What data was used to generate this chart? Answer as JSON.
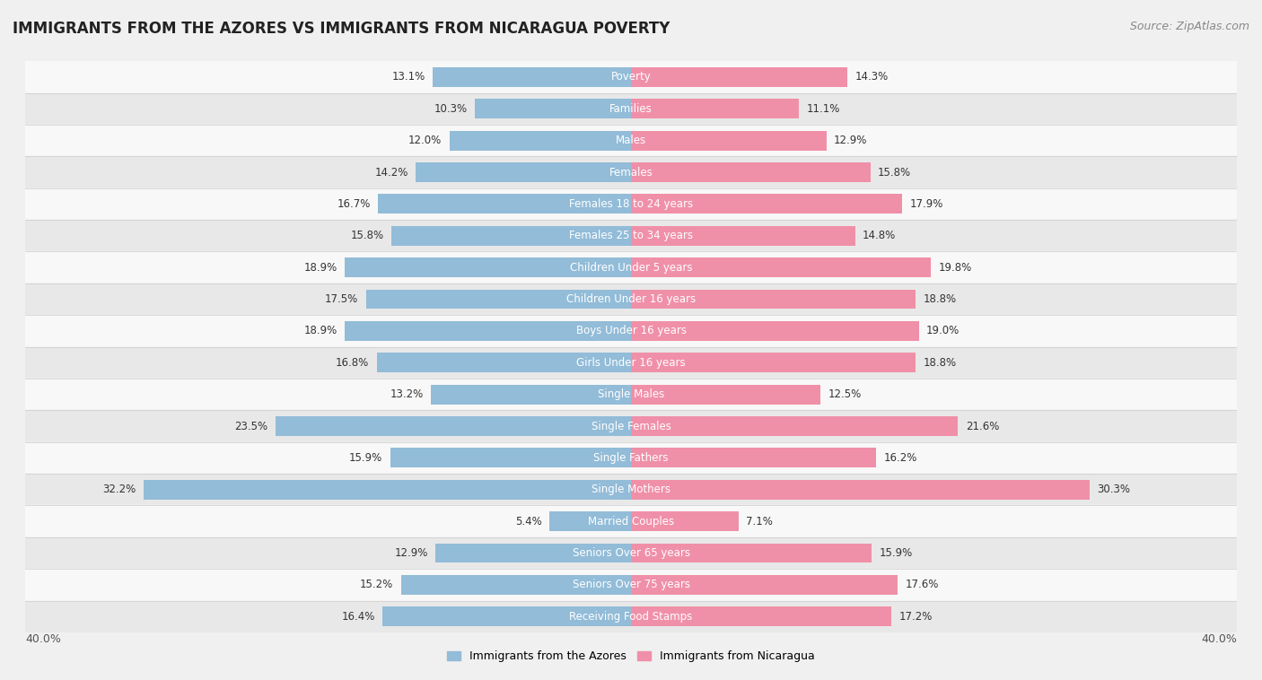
{
  "title": "IMMIGRANTS FROM THE AZORES VS IMMIGRANTS FROM NICARAGUA POVERTY",
  "source": "Source: ZipAtlas.com",
  "categories": [
    "Poverty",
    "Families",
    "Males",
    "Females",
    "Females 18 to 24 years",
    "Females 25 to 34 years",
    "Children Under 5 years",
    "Children Under 16 years",
    "Boys Under 16 years",
    "Girls Under 16 years",
    "Single Males",
    "Single Females",
    "Single Fathers",
    "Single Mothers",
    "Married Couples",
    "Seniors Over 65 years",
    "Seniors Over 75 years",
    "Receiving Food Stamps"
  ],
  "azores_values": [
    13.1,
    10.3,
    12.0,
    14.2,
    16.7,
    15.8,
    18.9,
    17.5,
    18.9,
    16.8,
    13.2,
    23.5,
    15.9,
    32.2,
    5.4,
    12.9,
    15.2,
    16.4
  ],
  "nicaragua_values": [
    14.3,
    11.1,
    12.9,
    15.8,
    17.9,
    14.8,
    19.8,
    18.8,
    19.0,
    18.8,
    12.5,
    21.6,
    16.2,
    30.3,
    7.1,
    15.9,
    17.6,
    17.2
  ],
  "azores_color": "#92bcd8",
  "nicaragua_color": "#f090a8",
  "azores_label": "Immigrants from the Azores",
  "nicaragua_label": "Immigrants from Nicaragua",
  "xlim": 40.0,
  "background_color": "#f0f0f0",
  "row_odd_color": "#e8e8e8",
  "row_even_color": "#f8f8f8",
  "title_fontsize": 12,
  "source_fontsize": 9,
  "bar_height": 0.62,
  "label_fontsize": 8.5,
  "value_fontsize": 8.5
}
